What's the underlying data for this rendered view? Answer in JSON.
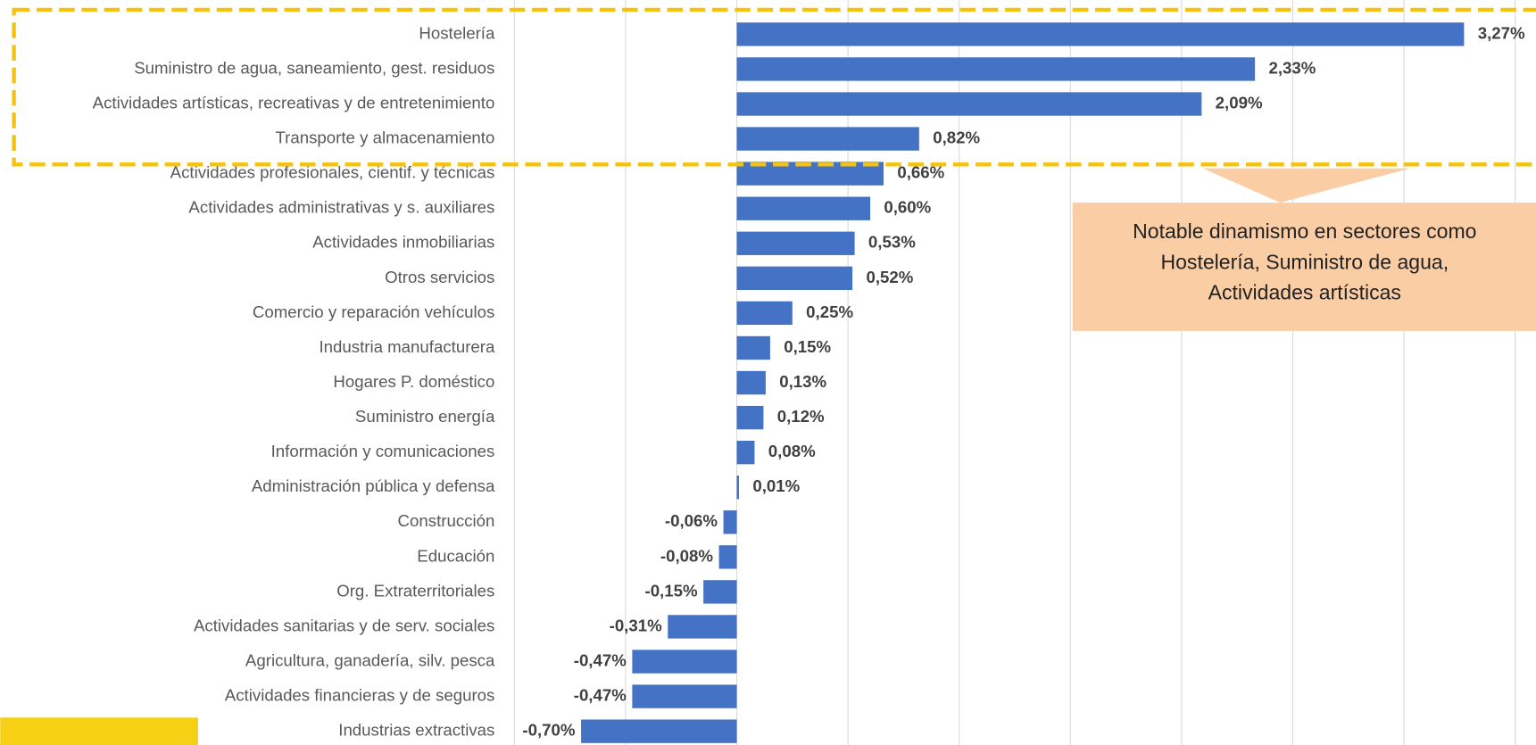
{
  "chart_data": {
    "type": "bar",
    "orientation": "horizontal",
    "categories": [
      "Hostelería",
      "Suministro de agua, saneamiento, gest. residuos",
      "Actividades artísticas, recreativas y de entretenimiento",
      "Transporte y almacenamiento",
      "Actividades profesionales, cientif. y técnicas",
      "Actividades administrativas y s. auxiliares",
      "Actividades inmobiliarias",
      "Otros servicios",
      "Comercio y reparación vehículos",
      "Industria manufacturera",
      "Hogares P. doméstico",
      "Suministro energía",
      "Información y comunicaciones",
      "Administración pública y defensa",
      "Construcción",
      "Educación",
      "Org. Extraterritoriales",
      "Actividades sanitarias y de serv. sociales",
      "Agricultura, ganadería, silv. pesca",
      "Actividades financieras y de seguros",
      "Industrias extractivas"
    ],
    "values": [
      3.27,
      2.33,
      2.09,
      0.82,
      0.66,
      0.6,
      0.53,
      0.52,
      0.25,
      0.15,
      0.13,
      0.12,
      0.08,
      0.01,
      -0.06,
      -0.08,
      -0.15,
      -0.31,
      -0.47,
      -0.47,
      -0.7
    ],
    "value_labels": [
      "3,27%",
      "2,33%",
      "2,09%",
      "0,82%",
      "0,66%",
      "0,60%",
      "0,53%",
      "0,52%",
      "0,25%",
      "0,15%",
      "0,13%",
      "0,12%",
      "0,08%",
      "0,01%",
      "-0,06%",
      "-0,08%",
      "-0,15%",
      "-0,31%",
      "-0,47%",
      "-0,47%",
      "-0,70%"
    ],
    "color": "#4472c4",
    "xlim": [
      -1,
      3.5
    ],
    "xticks": [
      -1,
      -0.5,
      0,
      0.5,
      1,
      1.5,
      2,
      2.5,
      3,
      3.5
    ],
    "grid": true,
    "annotation": [
      "Notable dinamismo en sectores como",
      "Hostelería, Suministro de agua,",
      "Actividades artísticas"
    ]
  }
}
